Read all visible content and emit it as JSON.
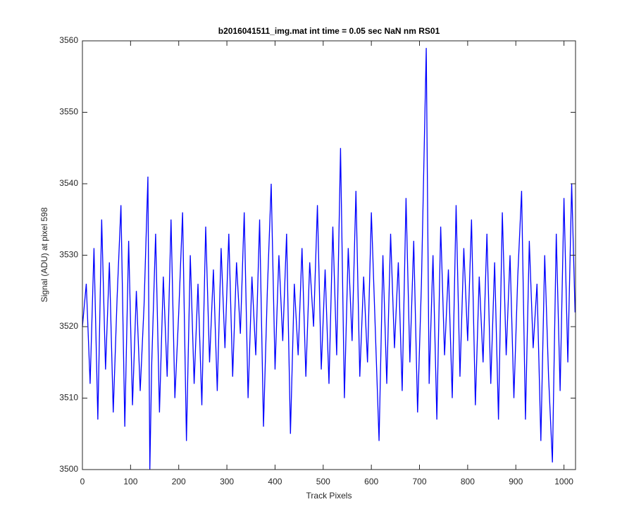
{
  "chart_data": {
    "type": "line",
    "title": "b2016041511_img.mat int time = 0.05 sec  NaN nm RS01",
    "xlabel": "Track Pixels",
    "ylabel": "Signal (ADU) at pixel 598",
    "x": [
      0,
      8,
      16,
      24,
      32,
      40,
      48,
      56,
      64,
      72,
      80,
      88,
      96,
      104,
      112,
      120,
      128,
      136,
      140,
      144,
      152,
      160,
      168,
      176,
      184,
      192,
      200,
      208,
      216,
      224,
      232,
      240,
      248,
      256,
      264,
      272,
      280,
      288,
      296,
      304,
      312,
      320,
      328,
      336,
      344,
      352,
      360,
      368,
      376,
      384,
      392,
      400,
      408,
      416,
      424,
      432,
      440,
      448,
      456,
      464,
      472,
      480,
      488,
      496,
      504,
      512,
      520,
      528,
      536,
      544,
      552,
      560,
      568,
      576,
      584,
      592,
      600,
      608,
      616,
      624,
      632,
      640,
      648,
      656,
      664,
      672,
      680,
      688,
      696,
      704,
      714,
      720,
      728,
      736,
      744,
      752,
      760,
      768,
      776,
      784,
      792,
      800,
      808,
      816,
      824,
      832,
      840,
      848,
      856,
      864,
      872,
      880,
      888,
      896,
      904,
      912,
      920,
      928,
      936,
      944,
      952,
      960,
      968,
      976,
      984,
      992,
      1000,
      1008,
      1016,
      1023
    ],
    "series": [
      {
        "name": "signal",
        "color": "#0000ff",
        "values": [
          3520,
          3526,
          3512,
          3531,
          3507,
          3535,
          3514,
          3529,
          3508,
          3524,
          3537,
          3506,
          3532,
          3509,
          3525,
          3511,
          3523,
          3541,
          3500,
          3515,
          3533,
          3508,
          3527,
          3513,
          3535,
          3510,
          3522,
          3536,
          3504,
          3530,
          3512,
          3526,
          3509,
          3534,
          3515,
          3528,
          3511,
          3531,
          3517,
          3533,
          3513,
          3529,
          3519,
          3536,
          3510,
          3527,
          3516,
          3535,
          3506,
          3525,
          3540,
          3514,
          3530,
          3518,
          3533,
          3505,
          3526,
          3516,
          3531,
          3513,
          3529,
          3520,
          3537,
          3514,
          3528,
          3512,
          3534,
          3516,
          3545,
          3510,
          3531,
          3518,
          3539,
          3513,
          3527,
          3515,
          3536,
          3520,
          3504,
          3530,
          3512,
          3533,
          3517,
          3529,
          3511,
          3538,
          3515,
          3532,
          3508,
          3526,
          3559,
          3512,
          3530,
          3507,
          3534,
          3516,
          3528,
          3510,
          3537,
          3513,
          3531,
          3518,
          3535,
          3509,
          3527,
          3515,
          3533,
          3512,
          3529,
          3507,
          3536,
          3516,
          3530,
          3510,
          3527,
          3539,
          3507,
          3532,
          3517,
          3526,
          3504,
          3530,
          3513,
          3501,
          3533,
          3511,
          3538,
          3515,
          3540,
          3522
        ]
      }
    ],
    "xlim": [
      0,
      1024
    ],
    "ylim": [
      3500,
      3560
    ],
    "xticks": [
      0,
      100,
      200,
      300,
      400,
      500,
      600,
      700,
      800,
      900,
      1000
    ],
    "yticks": [
      3500,
      3510,
      3520,
      3530,
      3540,
      3550,
      3560
    ],
    "grid": false
  }
}
